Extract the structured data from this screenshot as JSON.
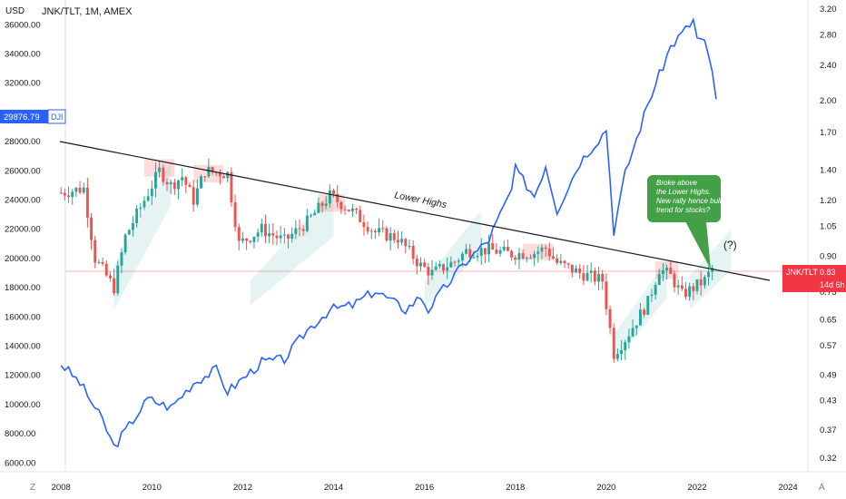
{
  "header": {
    "symbol": "JNK/TLT, 1M, AMEX",
    "currency": "USD"
  },
  "controls": {
    "left": "Z",
    "right": "A"
  },
  "colors": {
    "up": "#26a69a",
    "down": "#ef5350",
    "dji_line": "#2962ff",
    "trendline": "#131722",
    "callout": "#43a047",
    "price_marker": "#f23645"
  },
  "chart_data": {
    "type": "candlestick",
    "x": {
      "ticks": [
        "2008",
        "2010",
        "2012",
        "2014",
        "2016",
        "2018",
        "2020",
        "2022",
        "2024"
      ],
      "range": [
        "2007-06",
        "2024-12"
      ]
    },
    "left_axis": {
      "label": "USD",
      "ticks": [
        "6000.00",
        "8000.00",
        "10000.00",
        "12000.00",
        "14000.00",
        "16000.00",
        "18000.00",
        "20000.00",
        "22000.00",
        "24000.00",
        "26000.00",
        "28000.00",
        "32000.00",
        "34000.00",
        "36000.00"
      ],
      "range": [
        5400,
        37200
      ],
      "marker": {
        "label": "29876.79",
        "tag": "DJI",
        "value": 29876.79
      }
    },
    "right_axis": {
      "scale": "log",
      "ticks": [
        "3.20",
        "2.80",
        "2.40",
        "2.00",
        "1.70",
        "1.40",
        "1.20",
        "1.05",
        "0.90",
        "0.75",
        "0.65",
        "0.57",
        "0.49",
        "0.43",
        "0.37",
        "0.32"
      ],
      "marker": {
        "label": "JNK/TLT",
        "value_text": "0.83",
        "countdown": "14d 6h",
        "value": 0.83
      }
    },
    "series": [
      {
        "name": "JNK/TLT",
        "type": "candlestick",
        "points": [
          {
            "x": "2008-01",
            "y": 24500
          },
          {
            "x": "2008-07",
            "y": 24800
          },
          {
            "x": "2008-10",
            "y": 20000
          },
          {
            "x": "2009-03",
            "y": 18000
          },
          {
            "x": "2009-06",
            "y": 21500
          },
          {
            "x": "2009-12",
            "y": 24500
          },
          {
            "x": "2010-03",
            "y": 26000
          },
          {
            "x": "2010-06",
            "y": 25000
          },
          {
            "x": "2010-09",
            "y": 25600
          },
          {
            "x": "2010-12",
            "y": 24000
          },
          {
            "x": "2011-03",
            "y": 26000
          },
          {
            "x": "2011-09",
            "y": 25800
          },
          {
            "x": "2011-12",
            "y": 21000
          },
          {
            "x": "2012-06",
            "y": 22000
          },
          {
            "x": "2012-12",
            "y": 21200
          },
          {
            "x": "2013-06",
            "y": 22500
          },
          {
            "x": "2013-12",
            "y": 24300
          },
          {
            "x": "2014-06",
            "y": 23200
          },
          {
            "x": "2014-12",
            "y": 21800
          },
          {
            "x": "2015-06",
            "y": 21400
          },
          {
            "x": "2015-12",
            "y": 19500
          },
          {
            "x": "2016-03",
            "y": 19000
          },
          {
            "x": "2016-09",
            "y": 19800
          },
          {
            "x": "2016-12",
            "y": 20500
          },
          {
            "x": "2017-06",
            "y": 20600
          },
          {
            "x": "2017-12",
            "y": 20300
          },
          {
            "x": "2018-06",
            "y": 20400
          },
          {
            "x": "2018-09",
            "y": 20700
          },
          {
            "x": "2018-12",
            "y": 19700
          },
          {
            "x": "2019-06",
            "y": 19000
          },
          {
            "x": "2019-12",
            "y": 18500
          },
          {
            "x": "2020-03",
            "y": 13500
          },
          {
            "x": "2020-06",
            "y": 14500
          },
          {
            "x": "2020-12",
            "y": 17000
          },
          {
            "x": "2021-03",
            "y": 19300
          },
          {
            "x": "2021-06",
            "y": 18800
          },
          {
            "x": "2021-09",
            "y": 17500
          },
          {
            "x": "2021-12",
            "y": 18000
          },
          {
            "x": "2022-03",
            "y": 18500
          },
          {
            "x": "2022-05",
            "y": 19300
          }
        ]
      },
      {
        "name": "DJI",
        "type": "line",
        "points": [
          {
            "x": "2008-01",
            "y": 12800
          },
          {
            "x": "2008-06",
            "y": 11500
          },
          {
            "x": "2008-12",
            "y": 8900
          },
          {
            "x": "2009-03",
            "y": 7100
          },
          {
            "x": "2009-12",
            "y": 10400
          },
          {
            "x": "2010-06",
            "y": 9800
          },
          {
            "x": "2010-12",
            "y": 11500
          },
          {
            "x": "2011-06",
            "y": 12400
          },
          {
            "x": "2011-09",
            "y": 10900
          },
          {
            "x": "2012-06",
            "y": 12900
          },
          {
            "x": "2012-12",
            "y": 13100
          },
          {
            "x": "2013-06",
            "y": 15100
          },
          {
            "x": "2013-12",
            "y": 16500
          },
          {
            "x": "2014-06",
            "y": 16800
          },
          {
            "x": "2014-12",
            "y": 17800
          },
          {
            "x": "2015-08",
            "y": 16500
          },
          {
            "x": "2015-12",
            "y": 17400
          },
          {
            "x": "2016-02",
            "y": 16500
          },
          {
            "x": "2016-06",
            "y": 17900
          },
          {
            "x": "2016-12",
            "y": 19800
          },
          {
            "x": "2017-06",
            "y": 21300
          },
          {
            "x": "2017-12",
            "y": 24700
          },
          {
            "x": "2018-01",
            "y": 26100
          },
          {
            "x": "2018-06",
            "y": 24300
          },
          {
            "x": "2018-09",
            "y": 26400
          },
          {
            "x": "2018-12",
            "y": 23300
          },
          {
            "x": "2019-06",
            "y": 26600
          },
          {
            "x": "2019-12",
            "y": 28500
          },
          {
            "x": "2020-01",
            "y": 28900
          },
          {
            "x": "2020-03",
            "y": 21900
          },
          {
            "x": "2020-06",
            "y": 25800
          },
          {
            "x": "2020-12",
            "y": 30600
          },
          {
            "x": "2021-06",
            "y": 34500
          },
          {
            "x": "2021-12",
            "y": 36300
          },
          {
            "x": "2022-01",
            "y": 35100
          },
          {
            "x": "2022-03",
            "y": 34700
          },
          {
            "x": "2022-05",
            "y": 32900
          },
          {
            "x": "2022-06",
            "y": 30700
          }
        ]
      }
    ],
    "annotations": [
      {
        "kind": "trendline",
        "label": "Lower Highs"
      },
      {
        "kind": "callout",
        "text": [
          "Broke above",
          "the Lower Highs.",
          "New rally hence bull",
          "trend for stocks?"
        ]
      },
      {
        "kind": "label",
        "text": "(?)"
      }
    ],
    "grid": false,
    "legend": "top-left"
  }
}
